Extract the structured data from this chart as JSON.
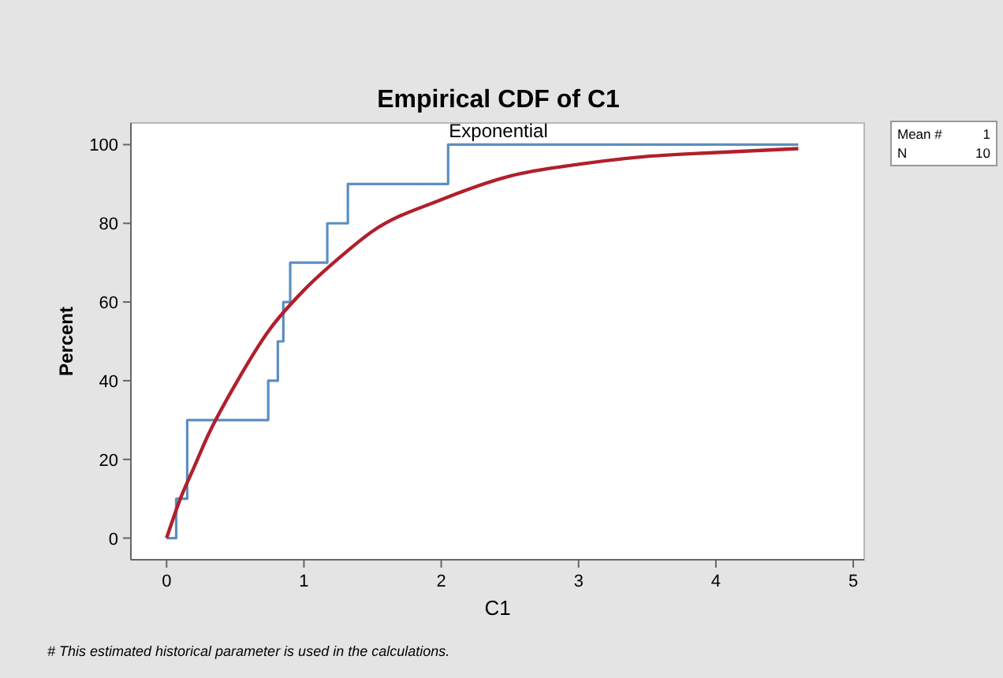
{
  "chart_data": {
    "type": "line",
    "title": "Empirical CDF of C1",
    "subtitle": "Exponential",
    "xlabel": "C1",
    "ylabel": "Percent",
    "annotations": [
      "Mean # 1",
      "N 10",
      "# This estimated historical parameter is used in the calculations."
    ],
    "xlim": [
      -0.26,
      5.08
    ],
    "ylim": [
      -5.5,
      105.5
    ],
    "xticks": [
      0,
      1,
      2,
      3,
      4,
      5
    ],
    "yticks": [
      0,
      20,
      40,
      60,
      80,
      100
    ],
    "grid": false,
    "series": [
      {
        "type": "step",
        "color": "#5b8fc0",
        "x": [
          0,
          0.07,
          0.15,
          0.74,
          0.81,
          0.85,
          0.9,
          1.17,
          1.32,
          2.05,
          4.6
        ],
        "values": [
          0,
          10,
          30,
          40,
          50,
          60,
          70,
          80,
          90,
          100,
          100
        ]
      },
      {
        "type": "line",
        "color": "#b0202c",
        "x": [
          0,
          0.1,
          0.2,
          0.3,
          0.5,
          0.75,
          1,
          1.25,
          1.5,
          2,
          2.5,
          3,
          3.5,
          4,
          4.6
        ],
        "values": [
          0,
          10,
          18,
          26,
          39,
          53,
          63,
          71,
          78,
          86,
          92,
          95,
          97,
          98,
          99
        ]
      }
    ]
  }
}
